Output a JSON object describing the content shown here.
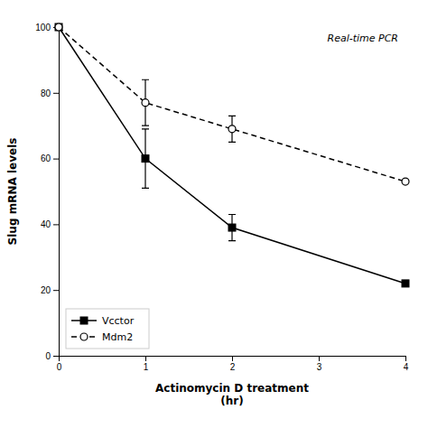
{
  "chart_data": {
    "type": "line",
    "x": [
      0,
      1,
      2,
      4
    ],
    "series": [
      {
        "name": "Vcctor",
        "color": "#000000",
        "marker": "square",
        "line_style": "solid",
        "values": [
          100,
          60,
          39,
          22
        ],
        "yerr_low": [
          0,
          9,
          4,
          0
        ],
        "yerr_high": [
          0,
          9,
          4,
          0
        ]
      },
      {
        "name": "Mdm2",
        "color": "#000000",
        "marker": "circle",
        "line_style": "dashed",
        "values": [
          100,
          77,
          69,
          53
        ],
        "yerr_low": [
          0,
          7,
          4,
          0
        ],
        "yerr_high": [
          0,
          7,
          4,
          0
        ]
      }
    ],
    "xlabel": "Actinomycin D treatment\n(hr)",
    "ylabel": "Slug mRNA levels",
    "annotation": "Real-time PCR",
    "xlim": [
      0,
      4
    ],
    "ylim": [
      0,
      100
    ],
    "xticks": [
      0,
      1,
      2,
      3,
      4
    ],
    "yticks": [
      0,
      20,
      40,
      60,
      80,
      100
    ],
    "grid": false,
    "legend": "lower left"
  }
}
